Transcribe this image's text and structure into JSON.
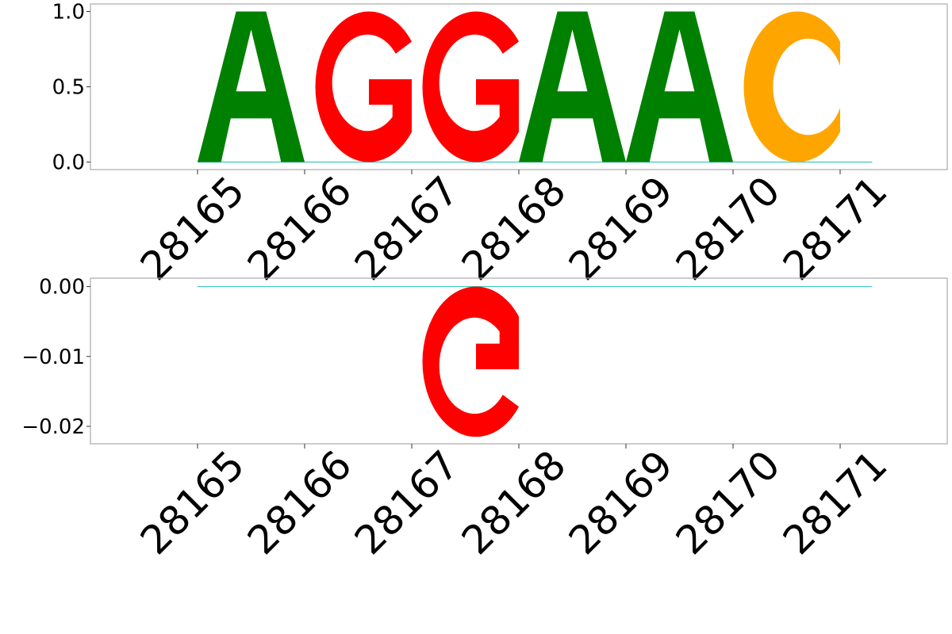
{
  "chart_data": [
    {
      "type": "sequence-logo",
      "panel": "top",
      "x": [
        28165,
        28166,
        28167,
        28168,
        28169,
        28170,
        28171
      ],
      "x_tick_labels": [
        "28165",
        "28166",
        "28167",
        "28168",
        "28169",
        "28170",
        "28171"
      ],
      "xlim": [
        28164.0,
        28172.0
      ],
      "ylim": [
        -0.05,
        1.05
      ],
      "y_ticks": [
        0.0,
        0.5,
        1.0
      ],
      "y_tick_labels": [
        "0.0",
        "0.5",
        "1.0"
      ],
      "grid": false,
      "letters": [
        {
          "x": 28165,
          "letter": "A",
          "value": 1.0,
          "color": "#008000"
        },
        {
          "x": 28166,
          "letter": "G",
          "value": 1.0,
          "color": "#ff0000"
        },
        {
          "x": 28167,
          "letter": "G",
          "value": 1.0,
          "color": "#ff0000"
        },
        {
          "x": 28168,
          "letter": "A",
          "value": 1.0,
          "color": "#008000"
        },
        {
          "x": 28169,
          "letter": "A",
          "value": 1.0,
          "color": "#008000"
        },
        {
          "x": 28170,
          "letter": "C",
          "value": 1.0,
          "color": "#ffa500"
        }
      ]
    },
    {
      "type": "sequence-logo",
      "panel": "bottom",
      "x": [
        28165,
        28166,
        28167,
        28168,
        28169,
        28170,
        28171
      ],
      "x_tick_labels": [
        "28165",
        "28166",
        "28167",
        "28168",
        "28169",
        "28170",
        "28171"
      ],
      "xlim": [
        28164.0,
        28172.0
      ],
      "ylim": [
        -0.0225,
        0.0012
      ],
      "y_ticks": [
        0.0,
        -0.01,
        -0.02
      ],
      "y_tick_labels": [
        "0.00",
        "−0.01",
        "−0.02"
      ],
      "grid": false,
      "letters": [
        {
          "x": 28167,
          "letter": "G",
          "value": -0.0215,
          "color": "#ff0000",
          "flipped": true
        }
      ]
    }
  ]
}
